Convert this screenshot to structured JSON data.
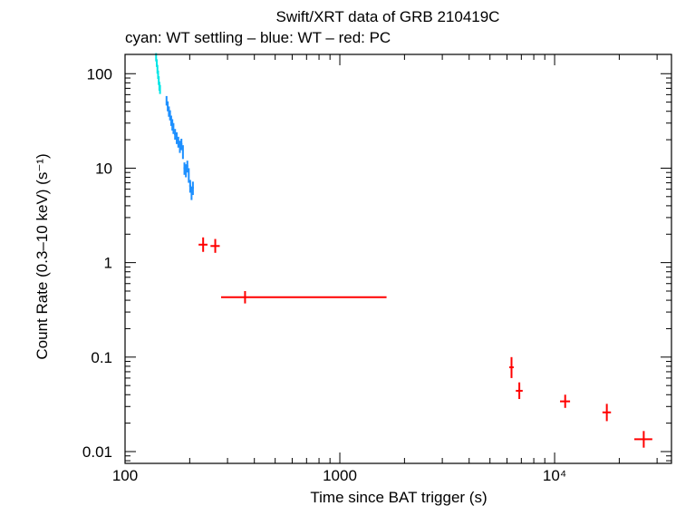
{
  "chart_data": {
    "type": "scatter",
    "title": "Swift/XRT data of GRB 210419C",
    "subtitle": "cyan: WT settling – blue: WT – red: PC",
    "xlabel": "Time since BAT trigger (s)",
    "ylabel": "Count Rate (0.3–10 keV) (s⁻¹)",
    "xscale": "log",
    "yscale": "log",
    "xlim": [
      100,
      35000
    ],
    "ylim": [
      0.0075,
      160
    ],
    "x_ticks": [
      {
        "value": 100,
        "label": "100"
      },
      {
        "value": 1000,
        "label": "1000"
      },
      {
        "value": 10000,
        "label": "10⁴"
      }
    ],
    "y_ticks": [
      {
        "value": 100,
        "label": "100"
      },
      {
        "value": 10,
        "label": "10"
      },
      {
        "value": 1,
        "label": "1"
      },
      {
        "value": 0.1,
        "label": "0.1"
      },
      {
        "value": 0.01,
        "label": "0.01"
      }
    ],
    "series": [
      {
        "mode": "WT settling",
        "color": "#00e5e5",
        "points": [
          {
            "x": 139.5,
            "y": 150,
            "xlo": 139,
            "xhi": 140,
            "ylo": 135,
            "yhi": 165
          },
          {
            "x": 140.5,
            "y": 130,
            "xlo": 140,
            "xhi": 141,
            "ylo": 118,
            "yhi": 142
          },
          {
            "x": 141.5,
            "y": 112,
            "xlo": 141,
            "xhi": 142,
            "ylo": 100,
            "yhi": 124
          },
          {
            "x": 142.5,
            "y": 98,
            "xlo": 142,
            "xhi": 143,
            "ylo": 88,
            "yhi": 108
          },
          {
            "x": 143.5,
            "y": 85,
            "xlo": 143,
            "xhi": 144,
            "ylo": 76,
            "yhi": 94
          },
          {
            "x": 144.5,
            "y": 74,
            "xlo": 144,
            "xhi": 145,
            "ylo": 66,
            "yhi": 82
          },
          {
            "x": 145.5,
            "y": 68,
            "xlo": 145,
            "xhi": 146,
            "ylo": 61,
            "yhi": 76
          }
        ]
      },
      {
        "mode": "WT",
        "color": "#1e90ff",
        "points": [
          {
            "x": 156,
            "y": 52,
            "xlo": 155,
            "xhi": 157,
            "ylo": 46,
            "yhi": 58
          },
          {
            "x": 158,
            "y": 45,
            "xlo": 157,
            "xhi": 159,
            "ylo": 40,
            "yhi": 51
          },
          {
            "x": 160,
            "y": 40,
            "xlo": 159,
            "xhi": 161,
            "ylo": 35,
            "yhi": 45
          },
          {
            "x": 162,
            "y": 36,
            "xlo": 161,
            "xhi": 163,
            "ylo": 32,
            "yhi": 41
          },
          {
            "x": 164,
            "y": 32,
            "xlo": 163,
            "xhi": 165,
            "ylo": 28,
            "yhi": 36
          },
          {
            "x": 166,
            "y": 29,
            "xlo": 165,
            "xhi": 167,
            "ylo": 25,
            "yhi": 33
          },
          {
            "x": 168,
            "y": 26,
            "xlo": 167,
            "xhi": 169,
            "ylo": 23,
            "yhi": 30
          },
          {
            "x": 171,
            "y": 23,
            "xlo": 169,
            "xhi": 173,
            "ylo": 20,
            "yhi": 26
          },
          {
            "x": 174,
            "y": 21,
            "xlo": 173,
            "xhi": 175,
            "ylo": 18,
            "yhi": 24
          },
          {
            "x": 177,
            "y": 19,
            "xlo": 175,
            "xhi": 179,
            "ylo": 16.5,
            "yhi": 21.5
          },
          {
            "x": 180,
            "y": 17,
            "xlo": 179,
            "xhi": 181,
            "ylo": 14.5,
            "yhi": 19.5
          },
          {
            "x": 183,
            "y": 18,
            "xlo": 181,
            "xhi": 185,
            "ylo": 15.5,
            "yhi": 20.5
          },
          {
            "x": 186,
            "y": 15,
            "xlo": 185,
            "xhi": 187,
            "ylo": 12.5,
            "yhi": 17.5
          },
          {
            "x": 189,
            "y": 10,
            "xlo": 187,
            "xhi": 191,
            "ylo": 8.5,
            "yhi": 11.5
          },
          {
            "x": 192,
            "y": 9.5,
            "xlo": 191,
            "xhi": 193,
            "ylo": 8,
            "yhi": 11
          },
          {
            "x": 195,
            "y": 10.5,
            "xlo": 193,
            "xhi": 197,
            "ylo": 9,
            "yhi": 12
          },
          {
            "x": 198,
            "y": 8.5,
            "xlo": 197,
            "xhi": 199,
            "ylo": 7,
            "yhi": 10
          },
          {
            "x": 201,
            "y": 6.5,
            "xlo": 199,
            "xhi": 203,
            "ylo": 5.5,
            "yhi": 7.5
          },
          {
            "x": 204,
            "y": 5.5,
            "xlo": 203,
            "xhi": 205,
            "ylo": 4.6,
            "yhi": 6.4
          },
          {
            "x": 207,
            "y": 6.2,
            "xlo": 205,
            "xhi": 209,
            "ylo": 5.2,
            "yhi": 7.2
          }
        ]
      },
      {
        "mode": "PC",
        "color": "#ff0000",
        "points": [
          {
            "x": 231,
            "y": 1.55,
            "xlo": 220,
            "xhi": 242,
            "ylo": 1.3,
            "yhi": 1.85
          },
          {
            "x": 263,
            "y": 1.5,
            "xlo": 250,
            "xhi": 276,
            "ylo": 1.27,
            "yhi": 1.78
          },
          {
            "x": 362,
            "y": 0.43,
            "xlo": 280,
            "xhi": 1650,
            "ylo": 0.37,
            "yhi": 0.5
          },
          {
            "x": 6300,
            "y": 0.078,
            "xlo": 6150,
            "xhi": 6450,
            "ylo": 0.06,
            "yhi": 0.1
          },
          {
            "x": 6850,
            "y": 0.044,
            "xlo": 6600,
            "xhi": 7100,
            "ylo": 0.036,
            "yhi": 0.054
          },
          {
            "x": 11200,
            "y": 0.034,
            "xlo": 10600,
            "xhi": 11800,
            "ylo": 0.029,
            "yhi": 0.04
          },
          {
            "x": 17500,
            "y": 0.026,
            "xlo": 16700,
            "xhi": 18300,
            "ylo": 0.021,
            "yhi": 0.032
          },
          {
            "x": 26000,
            "y": 0.0135,
            "xlo": 23500,
            "xhi": 28500,
            "ylo": 0.011,
            "yhi": 0.0165
          }
        ]
      }
    ]
  }
}
